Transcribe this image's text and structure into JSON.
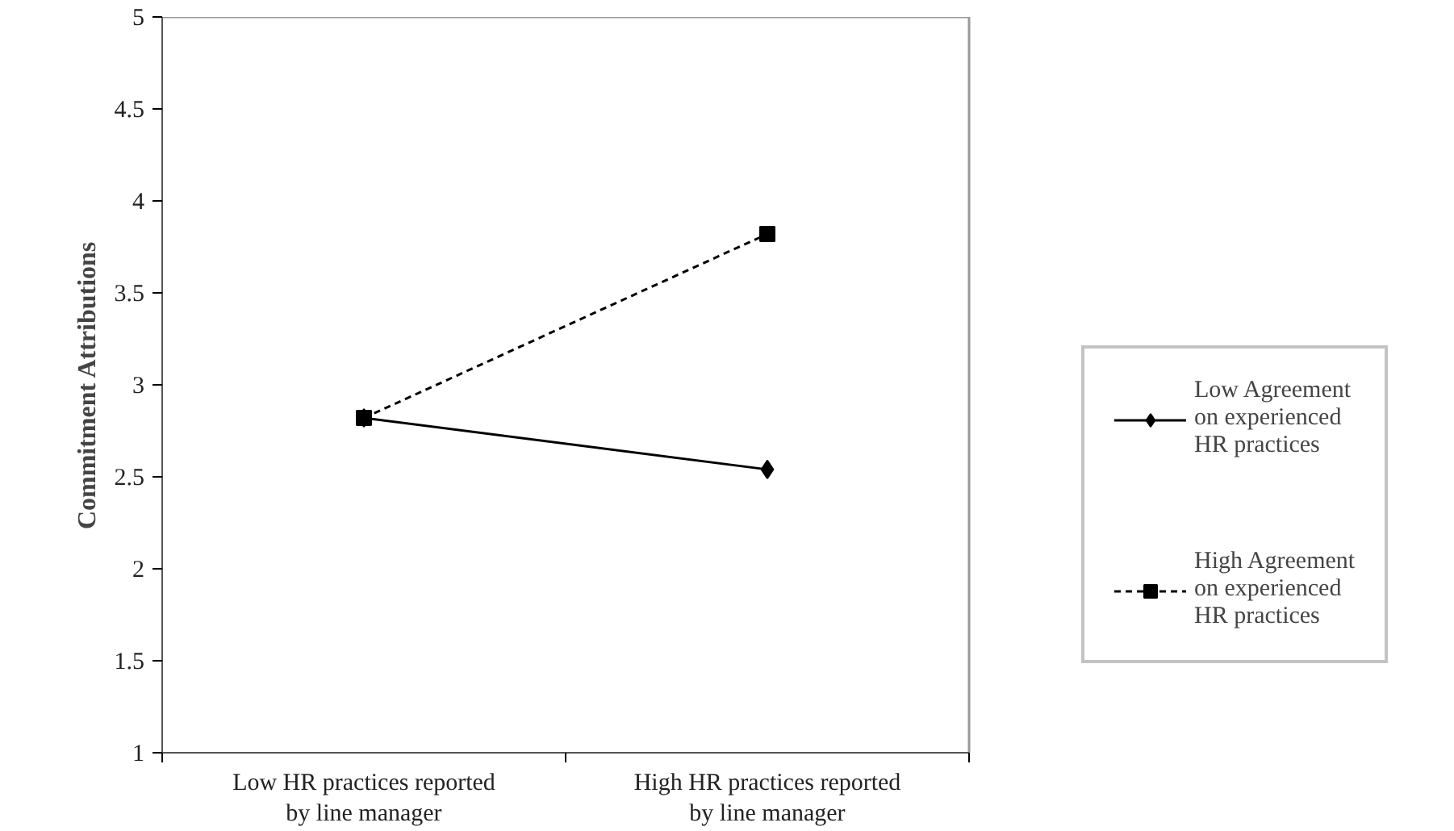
{
  "chart_data": {
    "type": "line",
    "ylabel": "Commitment Attributions",
    "categories": [
      "Low HR practices reported by line manager",
      "High HR practices reported by line manager"
    ],
    "series": [
      {
        "name": "Low Agreement on experienced HR practices",
        "color": "#000000",
        "values": [
          2.82,
          2.54
        ],
        "marker": "diamond",
        "line_style": "solid"
      },
      {
        "name": "High Agreement on experienced HR practices",
        "color": "#000000",
        "values": [
          2.82,
          3.82
        ],
        "marker": "square",
        "line_style": "dashed"
      }
    ],
    "ylim": [
      1,
      5
    ],
    "yticks": [
      1,
      1.5,
      2,
      2.5,
      3,
      3.5,
      4,
      4.5,
      5
    ],
    "grid": false,
    "legend": "right"
  }
}
